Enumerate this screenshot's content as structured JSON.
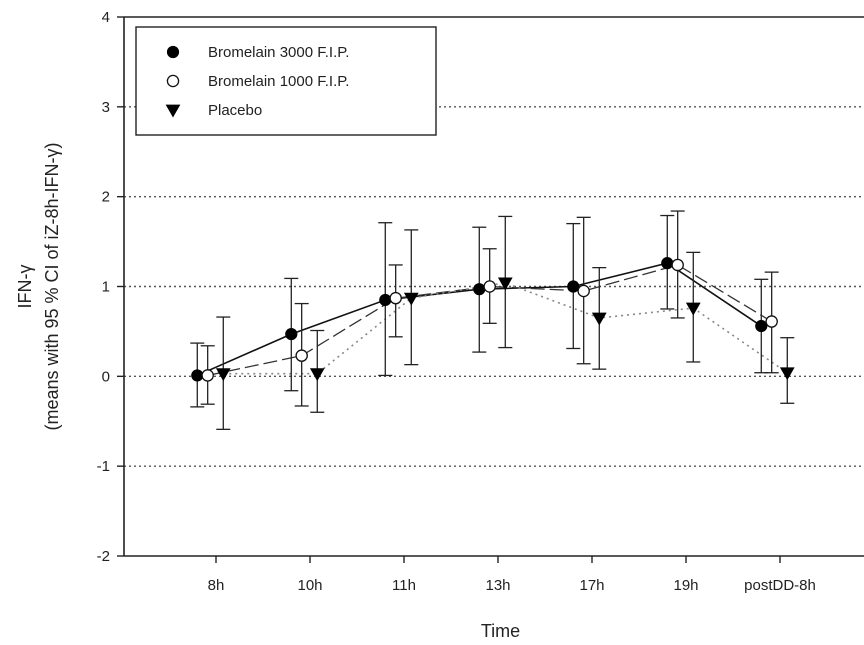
{
  "chart_data": {
    "type": "line",
    "title": "",
    "xlabel": "Time",
    "ylabel": "IFN-γ",
    "ylabel_sub": "(means with 95 % CI of iZ-8h-IFN-γ)",
    "categories": [
      "8h",
      "10h",
      "11h",
      "13h",
      "17h",
      "19h",
      "postDD-8h"
    ],
    "ylim": [
      -2,
      4
    ],
    "yticks": [
      -2,
      -1,
      0,
      1,
      2,
      3,
      4
    ],
    "grid": "dotted horizontal at 1-unit intervals",
    "legend_position": "top-left",
    "series": [
      {
        "name": "Bromelain 3000 F.I.P.",
        "marker": "filled-circle",
        "line": "solid",
        "values": [
          0.01,
          0.47,
          0.85,
          0.97,
          1.0,
          1.26,
          0.56
        ],
        "ci_low": [
          -0.34,
          -0.16,
          0.01,
          0.27,
          0.31,
          0.75,
          0.04
        ],
        "ci_high": [
          0.37,
          1.09,
          1.71,
          1.66,
          1.7,
          1.79,
          1.08
        ]
      },
      {
        "name": "Bromelain 1000 F.I.P.",
        "marker": "open-circle",
        "line": "long-dash",
        "values": [
          0.01,
          0.23,
          0.87,
          1.0,
          0.95,
          1.24,
          0.61
        ],
        "ci_low": [
          -0.31,
          -0.33,
          0.44,
          0.59,
          0.14,
          0.65,
          0.04
        ],
        "ci_high": [
          0.34,
          0.81,
          1.24,
          1.42,
          1.77,
          1.84,
          1.16
        ]
      },
      {
        "name": "Placebo",
        "marker": "filled-triangle-down",
        "line": "dotted",
        "values": [
          0.03,
          0.03,
          0.87,
          1.04,
          0.65,
          0.76,
          0.04
        ],
        "ci_low": [
          -0.59,
          -0.4,
          0.13,
          0.32,
          0.08,
          0.16,
          -0.3
        ],
        "ci_high": [
          0.66,
          0.51,
          1.63,
          1.78,
          1.21,
          1.38,
          0.43
        ]
      }
    ]
  }
}
